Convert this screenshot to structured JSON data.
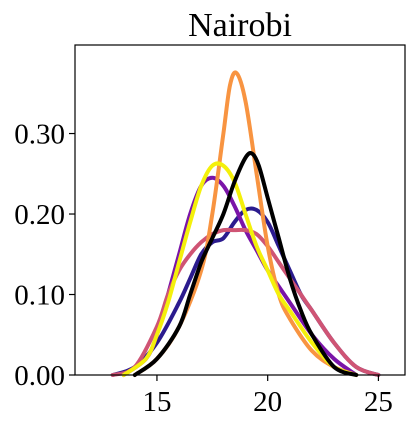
{
  "chart_data": {
    "type": "line",
    "title": "Nairobi",
    "xlabel": "",
    "ylabel": "",
    "xlim": [
      11.3,
      26.2
    ],
    "ylim": [
      0,
      0.41
    ],
    "x_ticks": [
      {
        "value": 15,
        "label": "15"
      },
      {
        "value": 20,
        "label": "20"
      },
      {
        "value": 25,
        "label": "25"
      }
    ],
    "y_ticks": [
      {
        "value": 0.0,
        "label": "0.00"
      },
      {
        "value": 0.1,
        "label": "0.10"
      },
      {
        "value": 0.2,
        "label": "0.20"
      },
      {
        "value": 0.3,
        "label": "0.30"
      }
    ],
    "grid": false,
    "legend": "none",
    "series": [
      {
        "color": "#2b1b8e",
        "x": [
          13.0,
          14.0,
          15.0,
          16.0,
          16.5,
          17.0,
          17.5,
          18.0,
          18.5,
          19.0,
          19.5,
          20.0,
          20.5,
          21.0,
          21.5,
          22.0,
          23.0,
          24.0,
          25.0
        ],
        "y": [
          0.0,
          0.01,
          0.04,
          0.09,
          0.12,
          0.15,
          0.165,
          0.17,
          0.19,
          0.205,
          0.205,
          0.19,
          0.16,
          0.13,
          0.1,
          0.08,
          0.04,
          0.01,
          0.0
        ]
      },
      {
        "color": "#7a14a8",
        "x": [
          13.5,
          14.5,
          15.0,
          15.5,
          16.0,
          16.5,
          17.0,
          17.5,
          18.0,
          18.5,
          19.0,
          19.5,
          20.0,
          20.5,
          21.0,
          22.0,
          23.0,
          24.0
        ],
        "y": [
          0.0,
          0.02,
          0.05,
          0.1,
          0.15,
          0.2,
          0.235,
          0.245,
          0.235,
          0.21,
          0.18,
          0.155,
          0.13,
          0.11,
          0.09,
          0.05,
          0.02,
          0.0
        ]
      },
      {
        "color": "#cf5474",
        "x": [
          13.0,
          14.0,
          15.0,
          15.5,
          16.0,
          16.5,
          17.0,
          17.5,
          18.0,
          18.5,
          19.0,
          19.5,
          20.0,
          20.5,
          21.0,
          21.5,
          22.0,
          23.0,
          24.0,
          25.0
        ],
        "y": [
          0.0,
          0.01,
          0.06,
          0.1,
          0.13,
          0.15,
          0.165,
          0.175,
          0.18,
          0.18,
          0.18,
          0.175,
          0.16,
          0.14,
          0.12,
          0.1,
          0.08,
          0.04,
          0.01,
          0.0
        ]
      },
      {
        "color": "#f89441",
        "x": [
          14.0,
          15.0,
          16.0,
          17.0,
          17.5,
          18.0,
          18.3,
          18.6,
          19.0,
          19.5,
          20.0,
          20.5,
          21.0,
          22.0,
          23.0,
          24.0
        ],
        "y": [
          0.0,
          0.02,
          0.06,
          0.13,
          0.2,
          0.3,
          0.36,
          0.375,
          0.34,
          0.25,
          0.16,
          0.1,
          0.07,
          0.03,
          0.01,
          0.0
        ]
      },
      {
        "color": "#f4f00b",
        "x": [
          13.5,
          14.5,
          15.0,
          15.5,
          16.0,
          16.5,
          17.0,
          17.5,
          18.0,
          18.5,
          19.0,
          19.5,
          20.0,
          20.5,
          21.0,
          22.0,
          23.0,
          24.0
        ],
        "y": [
          0.0,
          0.02,
          0.05,
          0.09,
          0.14,
          0.19,
          0.235,
          0.26,
          0.26,
          0.24,
          0.2,
          0.16,
          0.13,
          0.1,
          0.08,
          0.04,
          0.01,
          0.0
        ]
      },
      {
        "color": "#000000",
        "x": [
          14.0,
          15.0,
          16.0,
          16.5,
          17.0,
          17.5,
          18.0,
          18.5,
          19.0,
          19.3,
          19.6,
          20.0,
          20.5,
          21.0,
          21.5,
          22.0,
          23.0,
          24.0
        ],
        "y": [
          0.0,
          0.02,
          0.06,
          0.1,
          0.14,
          0.17,
          0.2,
          0.24,
          0.27,
          0.275,
          0.26,
          0.22,
          0.17,
          0.12,
          0.08,
          0.05,
          0.01,
          0.0
        ]
      }
    ]
  }
}
